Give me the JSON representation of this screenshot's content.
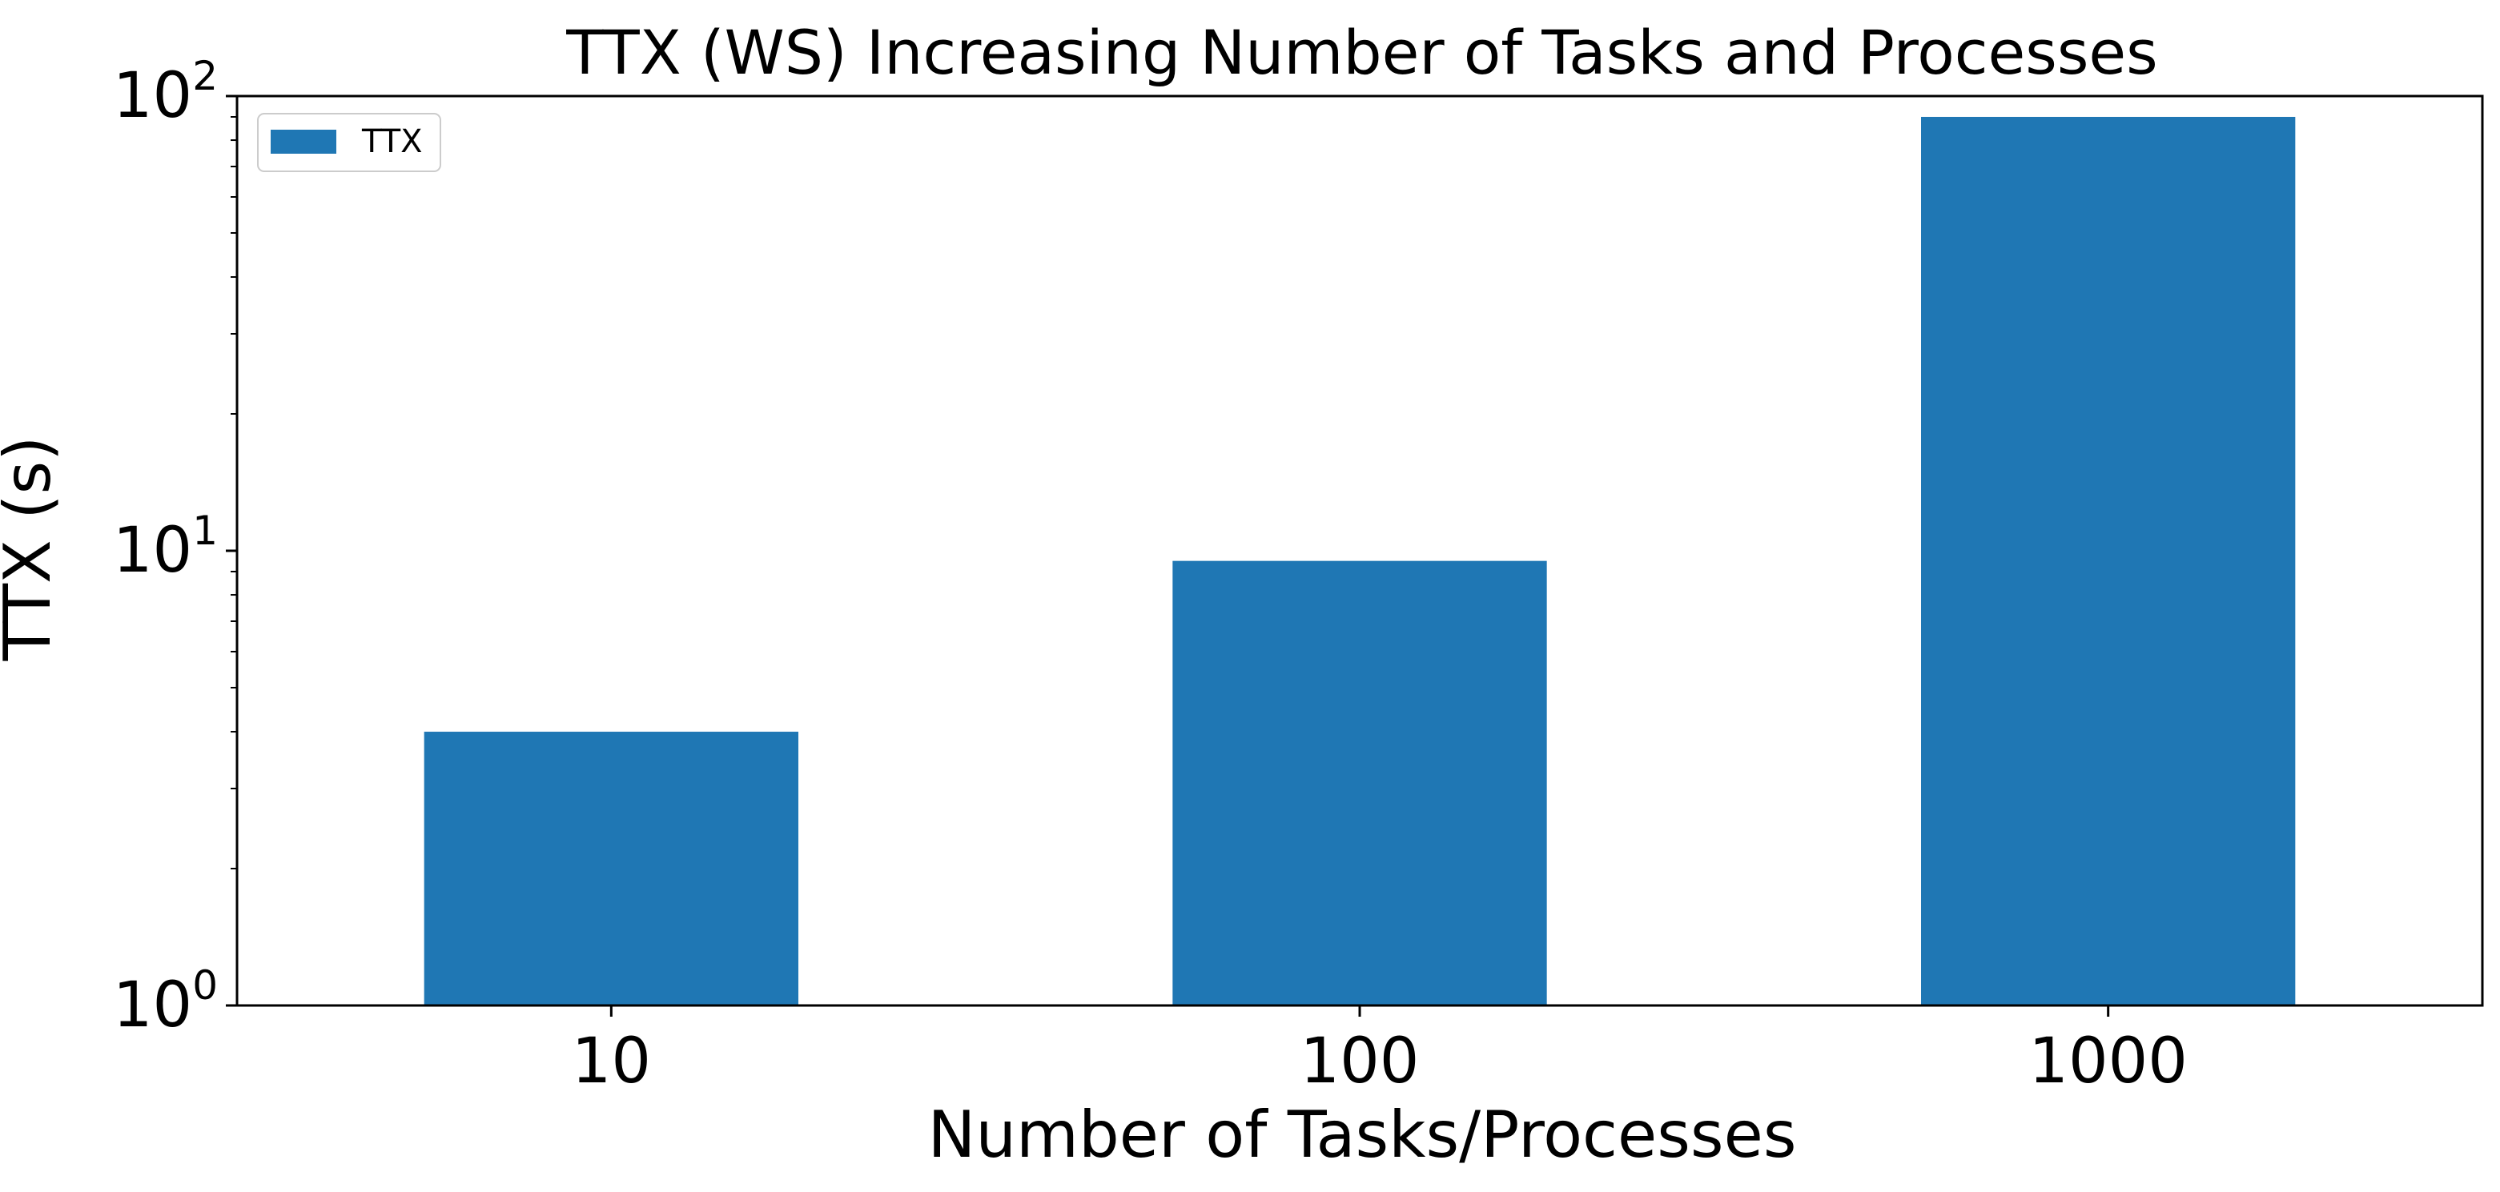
{
  "chart_data": {
    "type": "bar",
    "title": "TTX (WS) Increasing Number of Tasks and Processes",
    "xlabel": "Number of Tasks/Processes",
    "ylabel": "TTX (s)",
    "categories": [
      "10",
      "100",
      "1000"
    ],
    "series": [
      {
        "name": "TTX",
        "values": [
          4.0,
          9.5,
          90.0
        ],
        "color": "#1f77b4"
      }
    ],
    "yscale": "log",
    "ylim": [
      1,
      100
    ],
    "yticks": [
      {
        "base": "10",
        "exp": "0"
      },
      {
        "base": "10",
        "exp": "1"
      },
      {
        "base": "10",
        "exp": "2"
      }
    ],
    "grid": false,
    "legend": {
      "position": "top-left"
    }
  }
}
